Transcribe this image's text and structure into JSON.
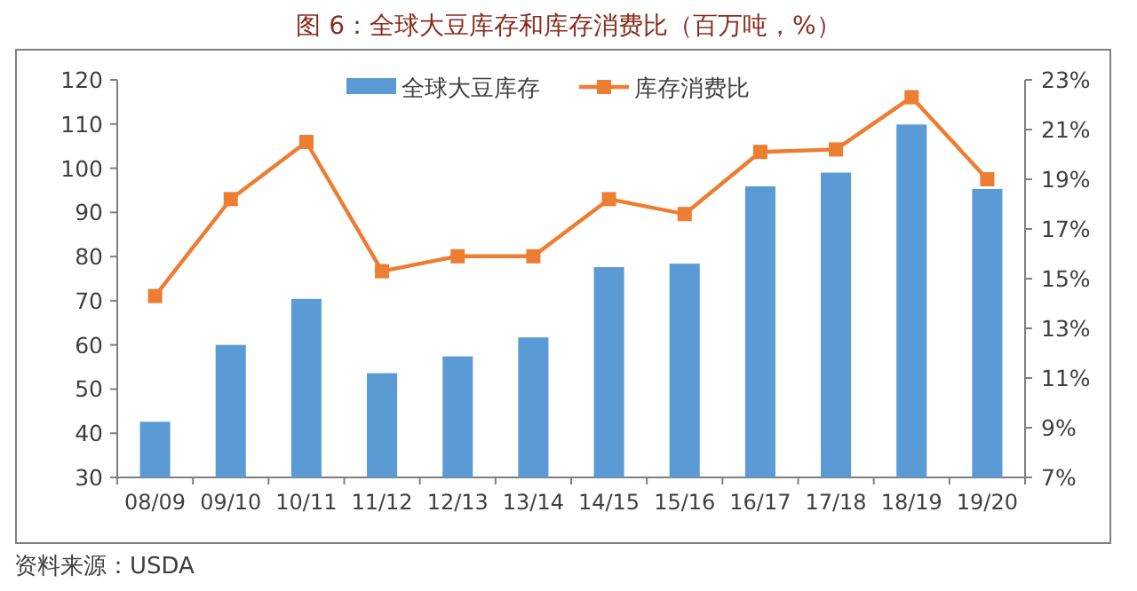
{
  "chart_data": {
    "type": "bar",
    "title": "图 6：全球大豆库存和库存消费比（百万吨，%）",
    "categories": [
      "08/09",
      "09/10",
      "10/11",
      "11/12",
      "12/13",
      "13/14",
      "14/15",
      "15/16",
      "16/17",
      "17/18",
      "18/19",
      "19/20"
    ],
    "series": [
      {
        "name": "全球大豆库存",
        "color": "#5b9bd5",
        "values": [
          42.6,
          60,
          70.4,
          53.6,
          57.4,
          61.7,
          77.6,
          78.4,
          95.9,
          99,
          109.9,
          95.3
        ]
      },
      {
        "name": "库存消费比",
        "type": "line",
        "axis": "y2",
        "color": "#ed7d31",
        "marker": "square",
        "values": [
          14.3,
          18.2,
          20.5,
          15.3,
          15.9,
          15.9,
          18.2,
          17.6,
          20.1,
          20.2,
          22.3,
          19.0
        ]
      }
    ],
    "ylim": [
      30,
      120
    ],
    "yticks": [
      30,
      40,
      50,
      60,
      70,
      80,
      90,
      100,
      110,
      120
    ],
    "y2lim": [
      7,
      23
    ],
    "y2ticks": [
      {
        "value": 7,
        "label": "7%"
      },
      {
        "value": 9,
        "label": "9%"
      },
      {
        "value": 11,
        "label": "11%"
      },
      {
        "value": 13,
        "label": "13%"
      },
      {
        "value": 15,
        "label": "15%"
      },
      {
        "value": 17,
        "label": "17%"
      },
      {
        "value": 19,
        "label": "19%"
      },
      {
        "value": 21,
        "label": "21%"
      },
      {
        "value": 23,
        "label": "23%"
      }
    ],
    "legend": "top",
    "annotations": [
      "资料来源：USDA"
    ]
  }
}
